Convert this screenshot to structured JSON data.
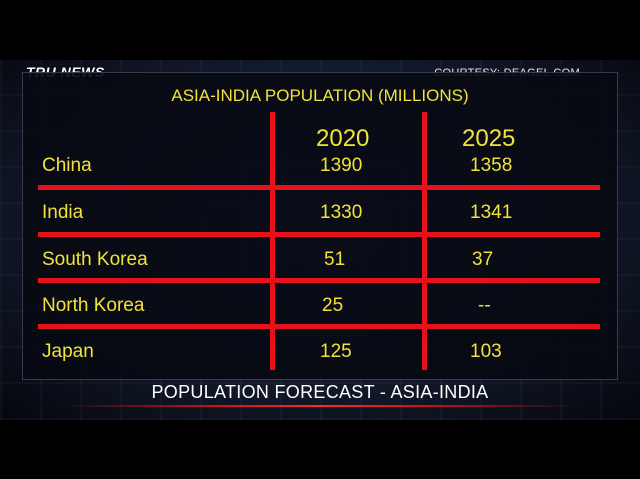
{
  "brand": {
    "logo_text": "TRU NEWS",
    "courtesy": "COURTESY:  DEAGEL.COM"
  },
  "table": {
    "title": "ASIA-INDIA POPULATION (MILLIONS)",
    "columns": [
      "2020",
      "2025"
    ],
    "rows": [
      {
        "country": "China",
        "v2020": "1390",
        "v2025": "1358"
      },
      {
        "country": "India",
        "v2020": "1330",
        "v2025": "1341"
      },
      {
        "country": "South Korea",
        "v2020": "51",
        "v2025": "37"
      },
      {
        "country": "North Korea",
        "v2020": "25",
        "v2025": "--"
      },
      {
        "country": "Japan",
        "v2020": "125",
        "v2025": "103"
      }
    ]
  },
  "caption": "POPULATION FORECAST - ASIA-INDIA",
  "colors": {
    "text_accent": "#f2e23a",
    "grid": "#e8101a",
    "background": "#000000"
  }
}
